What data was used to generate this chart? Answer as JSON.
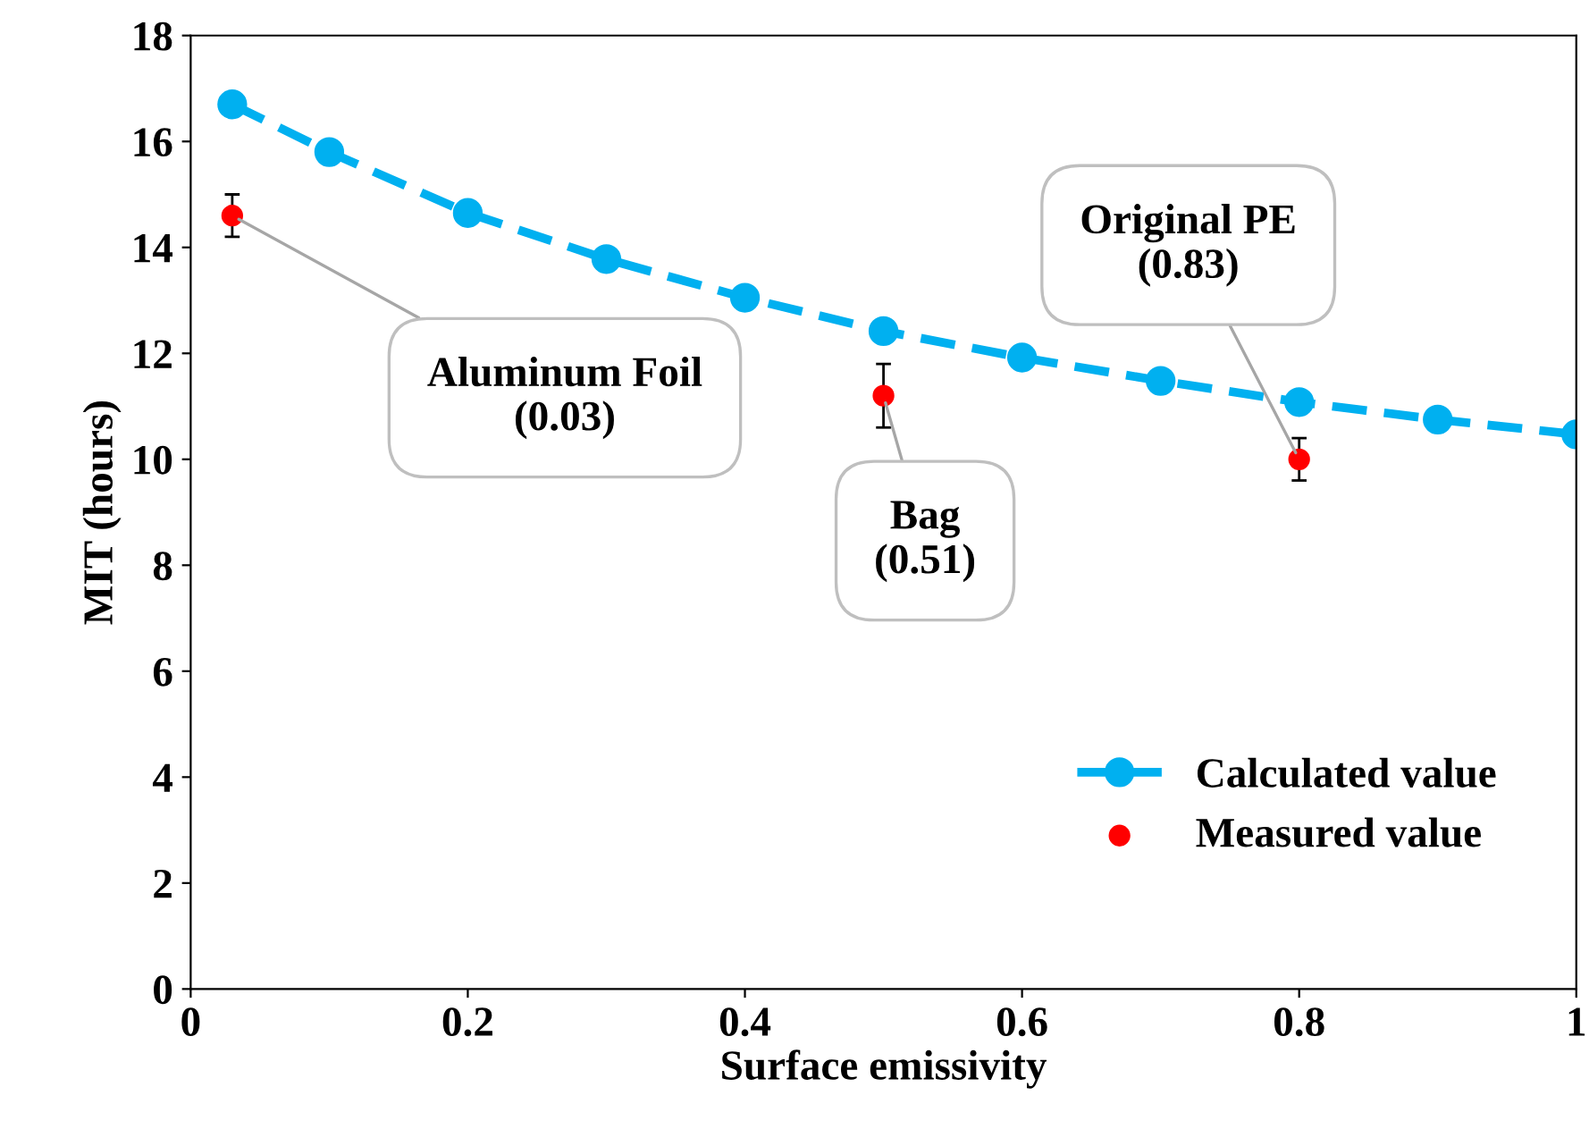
{
  "chart_data": {
    "type": "line",
    "xlabel": "Surface emissivity",
    "ylabel": "MIT (hours)",
    "xlim": [
      0,
      1
    ],
    "xticks": [
      0,
      0.2,
      0.4,
      0.6,
      0.8,
      1
    ],
    "ylim": [
      0,
      18
    ],
    "yticks": [
      0,
      2,
      4,
      6,
      8,
      10,
      12,
      14,
      16,
      18
    ],
    "grid": false,
    "legend": "bottom right",
    "series": [
      {
        "name": "Calculated value",
        "color": "#00b0f0",
        "marker": "circle",
        "line_style": "dashed",
        "x": [
          0.03,
          0.1,
          0.2,
          0.3,
          0.4,
          0.5,
          0.6,
          0.7,
          0.8,
          0.9,
          1.0
        ],
        "values": [
          16.7,
          15.8,
          14.65,
          13.78,
          13.05,
          12.42,
          11.92,
          11.48,
          11.08,
          10.75,
          10.47
        ]
      },
      {
        "name": "Measured value",
        "type": "scatter",
        "color": "#ff0000",
        "marker": "circle",
        "x": [
          0.03,
          0.5,
          0.8
        ],
        "values": [
          14.6,
          11.2,
          10.0
        ],
        "errors": [
          0.4,
          0.6,
          0.4
        ]
      }
    ],
    "annotations": [
      {
        "text": "Aluminum Foil\n(0.03)",
        "x": 0.03,
        "y": 14.6
      },
      {
        "text": "Bag\n(0.51)",
        "x": 0.5,
        "y": 11.2
      },
      {
        "text": "Original PE\n(0.83)",
        "x": 0.8,
        "y": 10.0
      }
    ]
  }
}
